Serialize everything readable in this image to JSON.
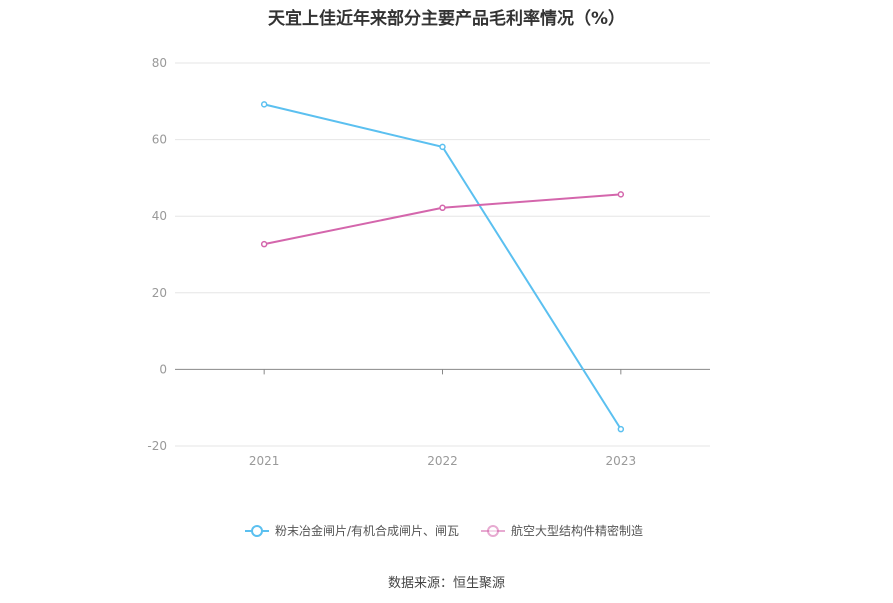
{
  "chart_data": {
    "type": "line",
    "title": "天宜上佳近年来部分主要产品毛利率情况（%）",
    "categories": [
      "2021",
      "2022",
      "2023"
    ],
    "series": [
      {
        "name": "粉末冶金闸片/有机合成闸片、闸瓦",
        "values": [
          69.2,
          58.1,
          -15.6
        ],
        "color": "#5bc0f0"
      },
      {
        "name": "航空大型结构件精密制造",
        "values": [
          32.7,
          42.2,
          45.7
        ],
        "color": "#d466ac"
      }
    ],
    "y_ticks": [
      "80",
      "60",
      "40",
      "20",
      "0",
      "-20"
    ],
    "ylim": [
      -20,
      80
    ],
    "grid": true,
    "legend_position": "bottom",
    "xlabel": "",
    "ylabel": ""
  },
  "source": "数据来源：恒生聚源"
}
